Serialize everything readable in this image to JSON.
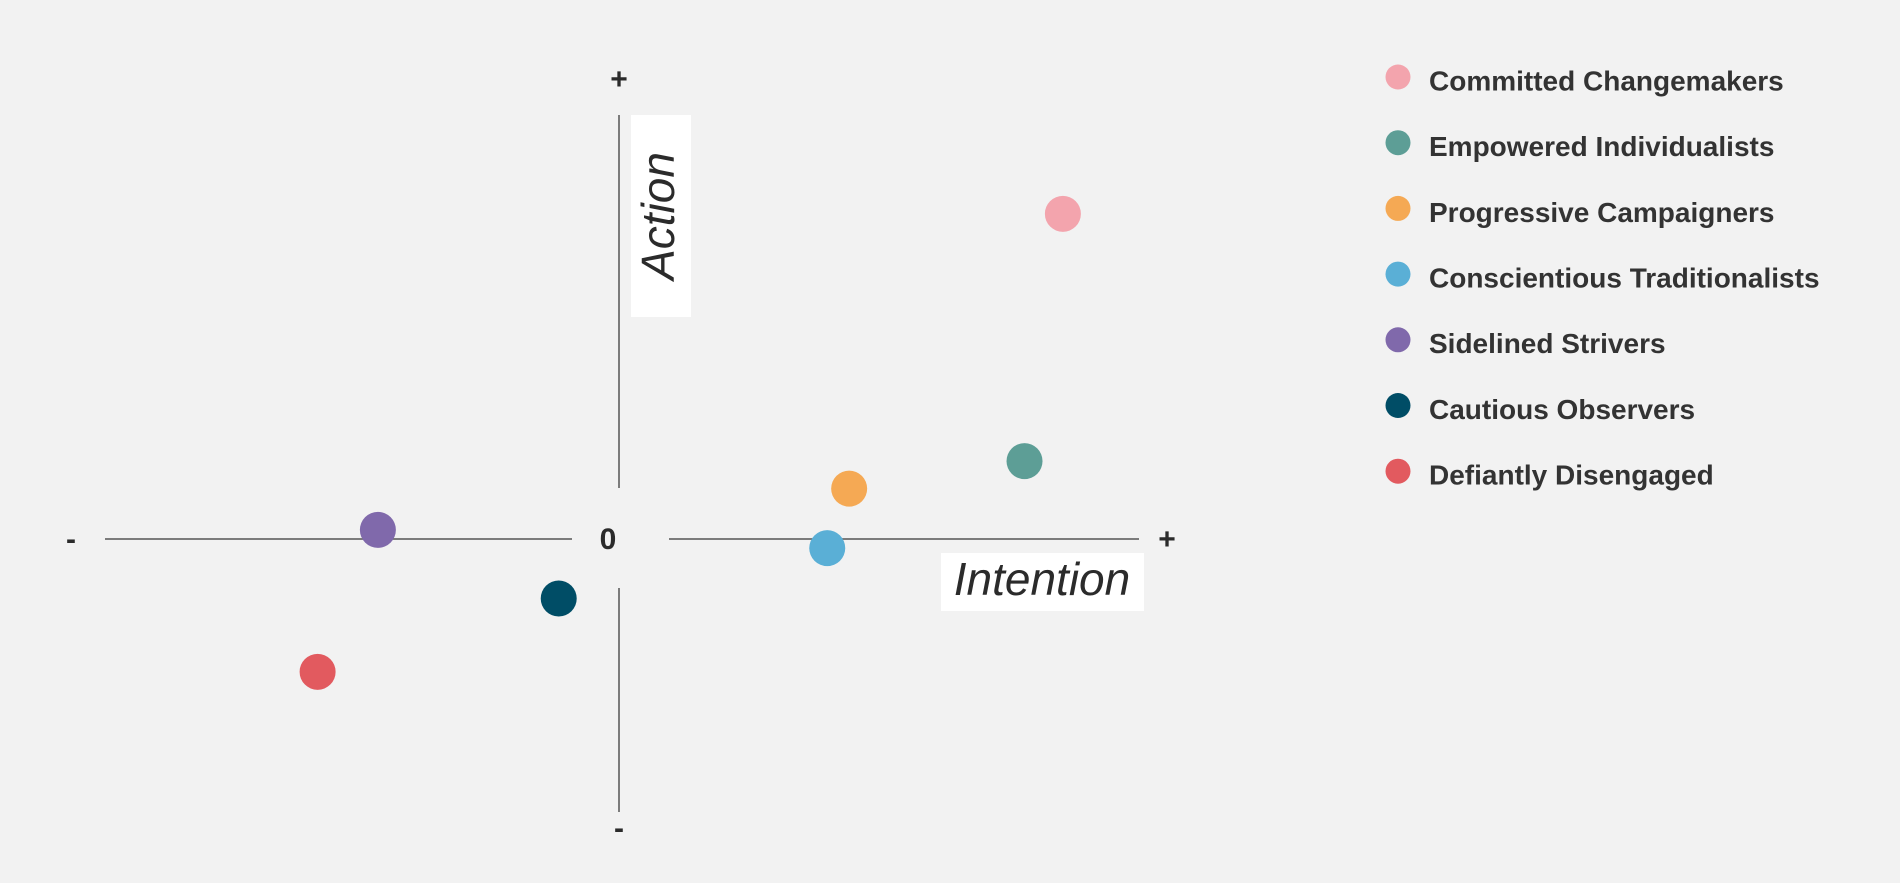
{
  "chart_data": {
    "type": "scatter",
    "x_label": "Intention",
    "y_label": "Action",
    "xlim": [
      -1,
      1
    ],
    "ylim": [
      -0.635,
      1
    ],
    "xticks": [
      {
        "value": -1,
        "label": "-"
      },
      0,
      {
        "value": 1,
        "label": "+"
      }
    ],
    "yticks": [
      {
        "value": -0.635,
        "label": "-"
      },
      {
        "value": 1,
        "label": "+"
      }
    ],
    "legend": "right",
    "series": [
      {
        "name": "Committed Changemakers",
        "color": "#f3a4ad",
        "x": [
          0.81
        ],
        "y": [
          0.71
        ]
      },
      {
        "name": "Empowered Individualists",
        "color": "#5d9e96",
        "x": [
          0.74
        ],
        "y": [
          0.17
        ]
      },
      {
        "name": "Progressive Campaigners",
        "color": "#f5a954",
        "x": [
          0.42
        ],
        "y": [
          0.11
        ]
      },
      {
        "name": "Conscientious Traditionalists",
        "color": "#5aafd6",
        "x": [
          0.38
        ],
        "y": [
          -0.02
        ]
      },
      {
        "name": "Sidelined Strivers",
        "color": "#8069ab",
        "x": [
          -0.44
        ],
        "y": [
          0.02
        ]
      },
      {
        "name": "Cautious Observers",
        "color": "#004d66",
        "x": [
          -0.11
        ],
        "y": [
          -0.13
        ]
      },
      {
        "name": "Defiantly Disengaged",
        "color": "#e25a5f",
        "x": [
          -0.55
        ],
        "y": [
          -0.29
        ]
      }
    ]
  }
}
